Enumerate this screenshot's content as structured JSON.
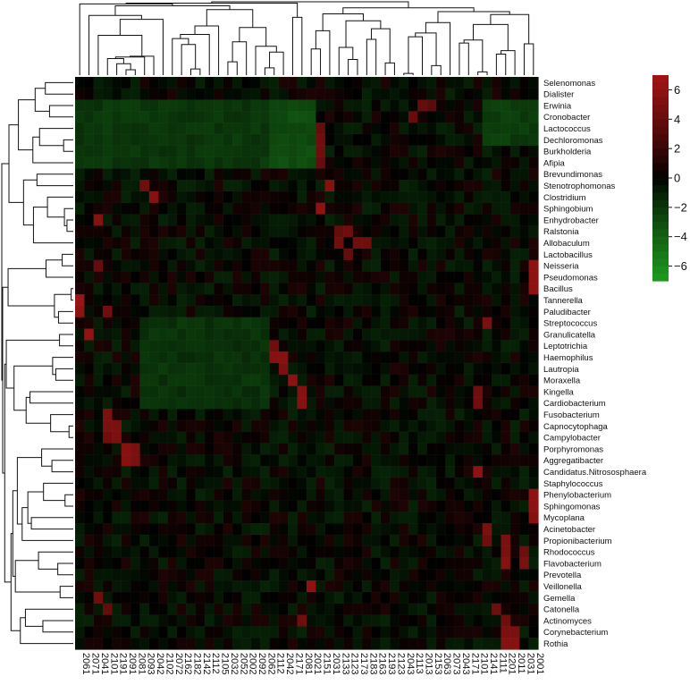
{
  "chart_data": {
    "type": "heatmap",
    "rows": [
      "Selenomonas",
      "Dialister",
      "Erwinia",
      "Cronobacter",
      "Lactococcus",
      "Dechloromonas",
      "Burkholderia",
      "Afipia",
      "Brevundimonas",
      "Stenotrophomonas",
      "Clostridium",
      "Sphingobium",
      "Enhydrobacter",
      "Ralstonia",
      "Allobaculum",
      "Lactobacillus",
      "Neisseria",
      "Pseudomonas",
      "Bacillus",
      "Tannerella",
      "Paludibacter",
      "Streptococcus",
      "Granulicatella",
      "Leptotrichia",
      "Haemophilus",
      "Lautropia",
      "Moraxella",
      "Kingella",
      "Cardiobacterium",
      "Fusobacterium",
      "Capnocytophaga",
      "Campylobacter",
      "Porphyromonas",
      "Aggregatibacter",
      "Candidatus.Nitrososphaera",
      "Staphylococcus",
      "Phenylobacterium",
      "Sphingomonas",
      "Mycoplana",
      "Acinetobacter",
      "Propionibacterium",
      "Rhodococcus",
      "Flavobacterium",
      "Prevotella",
      "Veillonella",
      "Gemella",
      "Catonella",
      "Actinomyces",
      "Corynebacterium",
      "Rothia"
    ],
    "columns": [
      "2061",
      "2071",
      "2041",
      "2101",
      "2191",
      "2091",
      "2081",
      "2093",
      "2042",
      "2102",
      "2072",
      "2162",
      "2182",
      "2142",
      "2112",
      "2105",
      "2032",
      "2052",
      "2002",
      "2092",
      "2062",
      "2112",
      "2042",
      "2171",
      "2081",
      "2021",
      "2151",
      "2031",
      "2133",
      "2123",
      "2173",
      "2183",
      "2163",
      "2193",
      "2123",
      "2043",
      "2113",
      "2013",
      "2153",
      "2063",
      "2073",
      "2043",
      "2171",
      "2101",
      "2141",
      "2111",
      "2201",
      "2011",
      "2031",
      "2001"
    ],
    "colorscale": {
      "min": -7,
      "max": 7,
      "low_color": "#1e9b1e",
      "mid_color": "#000000",
      "high_color": "#a31515",
      "ticks": [
        "6",
        "4",
        "2",
        "0",
        "−2",
        "−4",
        "−6"
      ]
    },
    "row_dendrogram": true,
    "column_dendrogram": true,
    "hot_cells": [
      {
        "row": "Tannerella",
        "col": 0,
        "value": 6.5
      },
      {
        "row": "Paludibacter",
        "col": 0,
        "value": 6.0
      },
      {
        "row": "Granulicatella",
        "col": 1,
        "value": 6.2
      },
      {
        "row": "Enhydrobacter",
        "col": 2,
        "value": 5.5
      },
      {
        "row": "Neisseria",
        "col": 2,
        "value": 4.0
      },
      {
        "row": "Paludibacter",
        "col": 3,
        "value": 4.5
      },
      {
        "row": "Fusobacterium",
        "col": 3,
        "value": 5.0
      },
      {
        "row": "Capnocytophaga",
        "col": 3,
        "value": 5.0
      },
      {
        "row": "Campylobacter",
        "col": 3,
        "value": 4.5
      },
      {
        "row": "Capnocytophaga",
        "col": 4,
        "value": 5.0
      },
      {
        "row": "Campylobacter",
        "col": 4,
        "value": 5.0
      },
      {
        "row": "Porphyromonas",
        "col": 5,
        "value": 5.5
      },
      {
        "row": "Aggregatibacter",
        "col": 5,
        "value": 5.5
      },
      {
        "row": "Porphyromonas",
        "col": 6,
        "value": 5.0
      },
      {
        "row": "Aggregatibacter",
        "col": 6,
        "value": 5.0
      },
      {
        "row": "Stenotrophomonas",
        "col": 7,
        "value": 4.5
      },
      {
        "row": "Clostridium",
        "col": 8,
        "value": 5.5
      },
      {
        "row": "Gemella",
        "col": 2,
        "value": 4.5
      },
      {
        "row": "Catonella",
        "col": 3,
        "value": 4.0
      },
      {
        "row": "Leptotrichia",
        "col": 21,
        "value": 4.5
      },
      {
        "row": "Haemophilus",
        "col": 21,
        "value": 5.5
      },
      {
        "row": "Haemophilus",
        "col": 22,
        "value": 5.5
      },
      {
        "row": "Lautropia",
        "col": 22,
        "value": 5.0
      },
      {
        "row": "Moraxella",
        "col": 23,
        "value": 6.0
      },
      {
        "row": "Kingella",
        "col": 24,
        "value": 5.5
      },
      {
        "row": "Cardiobacterium",
        "col": 24,
        "value": 5.5
      },
      {
        "row": "Veillonella",
        "col": 25,
        "value": 6.0
      },
      {
        "row": "Actinomyces",
        "col": 24,
        "value": 4.5
      },
      {
        "row": "Sphingobium",
        "col": 26,
        "value": 6.0
      },
      {
        "row": "Stenotrophomonas",
        "col": 27,
        "value": 5.5
      },
      {
        "row": "Lactococcus",
        "col": 26,
        "value": 4.0
      },
      {
        "row": "Dechloromonas",
        "col": 26,
        "value": 4.5
      },
      {
        "row": "Burkholderia",
        "col": 26,
        "value": 4.5
      },
      {
        "row": "Afipia",
        "col": 26,
        "value": 4.0
      },
      {
        "row": "Ralstonia",
        "col": 28,
        "value": 4.0
      },
      {
        "row": "Ralstonia",
        "col": 29,
        "value": 4.5
      },
      {
        "row": "Allobaculum",
        "col": 28,
        "value": 4.5
      },
      {
        "row": "Allobaculum",
        "col": 30,
        "value": 4.5
      },
      {
        "row": "Allobaculum",
        "col": 31,
        "value": 4.5
      },
      {
        "row": "Lactobacillus",
        "col": 29,
        "value": 4.0
      },
      {
        "row": "Cronobacter",
        "col": 36,
        "value": 4.0
      },
      {
        "row": "Erwinia",
        "col": 37,
        "value": 4.0
      },
      {
        "row": "Erwinia",
        "col": 38,
        "value": 3.5
      },
      {
        "row": "Candidatus.Nitrososphaera",
        "col": 43,
        "value": 6.0
      },
      {
        "row": "Streptococcus",
        "col": 44,
        "value": 5.0
      },
      {
        "row": "Kingella",
        "col": 43,
        "value": 4.5
      },
      {
        "row": "Cardiobacterium",
        "col": 43,
        "value": 4.5
      },
      {
        "row": "Acinetobacter",
        "col": 44,
        "value": 5.0
      },
      {
        "row": "Propionibacterium",
        "col": 44,
        "value": 4.5
      },
      {
        "row": "Propionibacterium",
        "col": 46,
        "value": 5.0
      },
      {
        "row": "Rhodococcus",
        "col": 46,
        "value": 5.0
      },
      {
        "row": "Flavobacterium",
        "col": 46,
        "value": 5.5
      },
      {
        "row": "Catonella",
        "col": 45,
        "value": 4.5
      },
      {
        "row": "Actinomyces",
        "col": 46,
        "value": 4.5
      },
      {
        "row": "Corynebacterium",
        "col": 46,
        "value": 5.0
      },
      {
        "row": "Corynebacterium",
        "col": 47,
        "value": 5.0
      },
      {
        "row": "Rothia",
        "col": 46,
        "value": 5.5
      },
      {
        "row": "Rothia",
        "col": 47,
        "value": 5.5
      },
      {
        "row": "Neisseria",
        "col": 49,
        "value": 6.0
      },
      {
        "row": "Pseudomonas",
        "col": 49,
        "value": 6.0
      },
      {
        "row": "Bacillus",
        "col": 49,
        "value": 6.0
      },
      {
        "row": "Phenylobacterium",
        "col": 49,
        "value": 6.0
      },
      {
        "row": "Sphingomonas",
        "col": 49,
        "value": 6.0
      },
      {
        "row": "Mycoplana",
        "col": 49,
        "value": 5.5
      },
      {
        "row": "Flavobacterium",
        "col": 48,
        "value": 5.0
      },
      {
        "row": "Rhodococcus",
        "col": 48,
        "value": 4.5
      }
    ],
    "green_blocks": [
      {
        "rows": [
          "Erwinia",
          "Cronobacter",
          "Lactococcus",
          "Dechloromonas",
          "Burkholderia",
          "Afipia"
        ],
        "cols": [
          0,
          1,
          2,
          3,
          4,
          5,
          6,
          7,
          8,
          9,
          10,
          11,
          12,
          13,
          14,
          15,
          16,
          17,
          18,
          19,
          20
        ],
        "value": -2.0
      },
      {
        "rows": [
          "Erwinia",
          "Cronobacter",
          "Lactococcus",
          "Dechloromonas",
          "Burkholderia",
          "Afipia"
        ],
        "cols": [
          21,
          22,
          23,
          24,
          25
        ],
        "value": -3.0
      },
      {
        "rows": [
          "Streptococcus",
          "Granulicatella",
          "Leptotrichia",
          "Haemophilus",
          "Lautropia",
          "Moraxella",
          "Kingella",
          "Cardiobacterium"
        ],
        "cols": [
          7,
          8,
          9,
          10,
          11,
          12,
          13,
          14,
          15,
          16,
          17,
          18,
          19,
          20
        ],
        "value": -1.8
      },
      {
        "rows": [
          "Erwinia",
          "Cronobacter",
          "Lactococcus",
          "Dechloromonas"
        ],
        "cols": [
          44,
          45,
          46,
          47,
          48,
          49
        ],
        "value": -2.2
      }
    ]
  }
}
